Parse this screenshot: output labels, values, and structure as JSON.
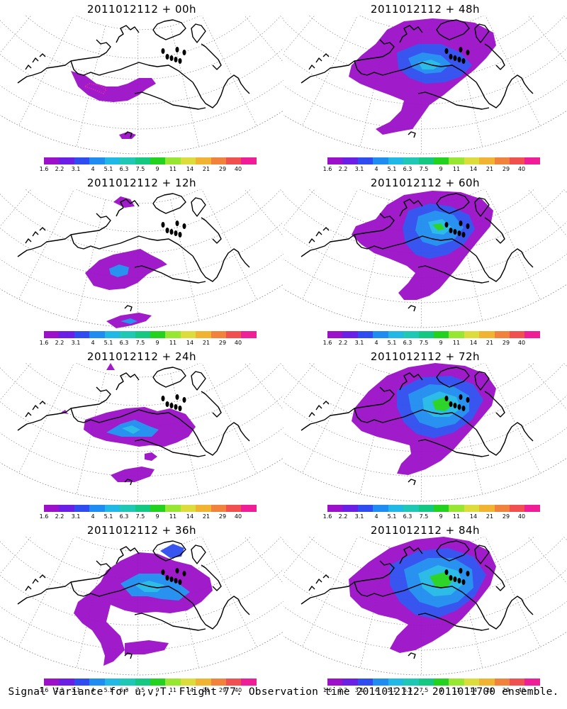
{
  "figure": {
    "caption": "Signal Variance for u,v,T. Flight 77. Observation time 2011012112. 2011011700 ensemble."
  },
  "colorbar": {
    "labels": [
      "1.6",
      "2.2",
      "3.1",
      "4",
      "5.1",
      "6.3",
      "7.5",
      "9",
      "11",
      "14",
      "21",
      "29",
      "40"
    ],
    "colors": [
      "#9b10c8",
      "#6a1ee6",
      "#2f4cf0",
      "#1e8cf0",
      "#22b8e6",
      "#1ec8b4",
      "#14c882",
      "#22d21e",
      "#96e632",
      "#dcdc3c",
      "#f0b432",
      "#f0823c",
      "#f05050",
      "#f01e96"
    ]
  },
  "panels": [
    {
      "title": "2011012112 + 00h",
      "stage": 0
    },
    {
      "title": "2011012112 + 48h",
      "stage": 4
    },
    {
      "title": "2011012112 + 12h",
      "stage": 1
    },
    {
      "title": "2011012112 + 60h",
      "stage": 5
    },
    {
      "title": "2011012112 + 24h",
      "stage": 2
    },
    {
      "title": "2011012112 + 72h",
      "stage": 6
    },
    {
      "title": "2011012112 + 36h",
      "stage": 3
    },
    {
      "title": "2011012112 + 84h",
      "stage": 7
    }
  ]
}
